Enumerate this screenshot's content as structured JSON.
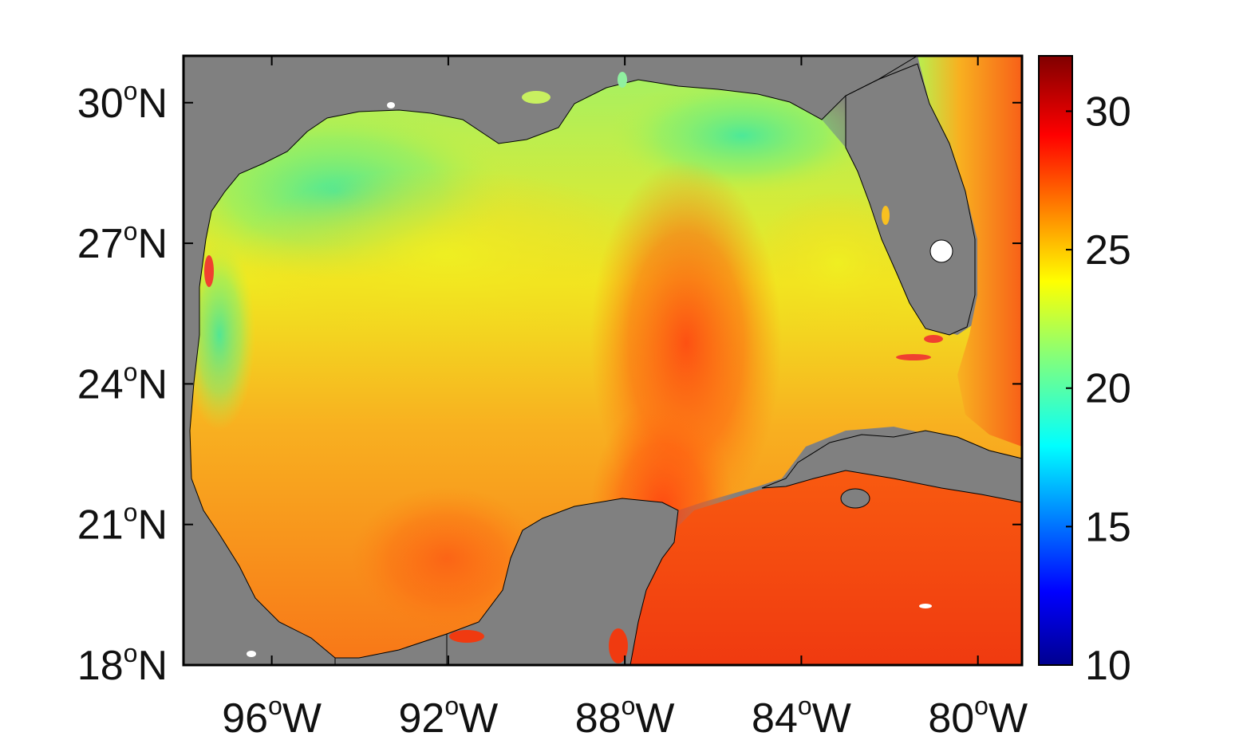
{
  "map": {
    "lat_labels": [
      {
        "value": 30,
        "text": "30",
        "deg": "o",
        "hemi": "N"
      },
      {
        "value": 27,
        "text": "27",
        "deg": "o",
        "hemi": "N"
      },
      {
        "value": 24,
        "text": "24",
        "deg": "o",
        "hemi": "N"
      },
      {
        "value": 21,
        "text": "21",
        "deg": "o",
        "hemi": "N"
      },
      {
        "value": 18,
        "text": "18",
        "deg": "o",
        "hemi": "N"
      }
    ],
    "lon_labels": [
      {
        "value": -96,
        "text": "96",
        "deg": "o",
        "hemi": "W"
      },
      {
        "value": -92,
        "text": "92",
        "deg": "o",
        "hemi": "W"
      },
      {
        "value": -88,
        "text": "88",
        "deg": "o",
        "hemi": "W"
      },
      {
        "value": -84,
        "text": "84",
        "deg": "o",
        "hemi": "W"
      },
      {
        "value": -80,
        "text": "80",
        "deg": "o",
        "hemi": "W"
      }
    ],
    "extent": {
      "lon_min": -98,
      "lon_max": -79,
      "lat_min": 18,
      "lat_max": 31
    },
    "land_color": "#808080",
    "frame_color": "#000000"
  },
  "colorbar": {
    "min": 10,
    "max": 32,
    "ticks": [
      "30",
      "25",
      "20",
      "15",
      "10"
    ],
    "tick_values": [
      30,
      25,
      20,
      15,
      10
    ],
    "colormap": "jet"
  }
}
